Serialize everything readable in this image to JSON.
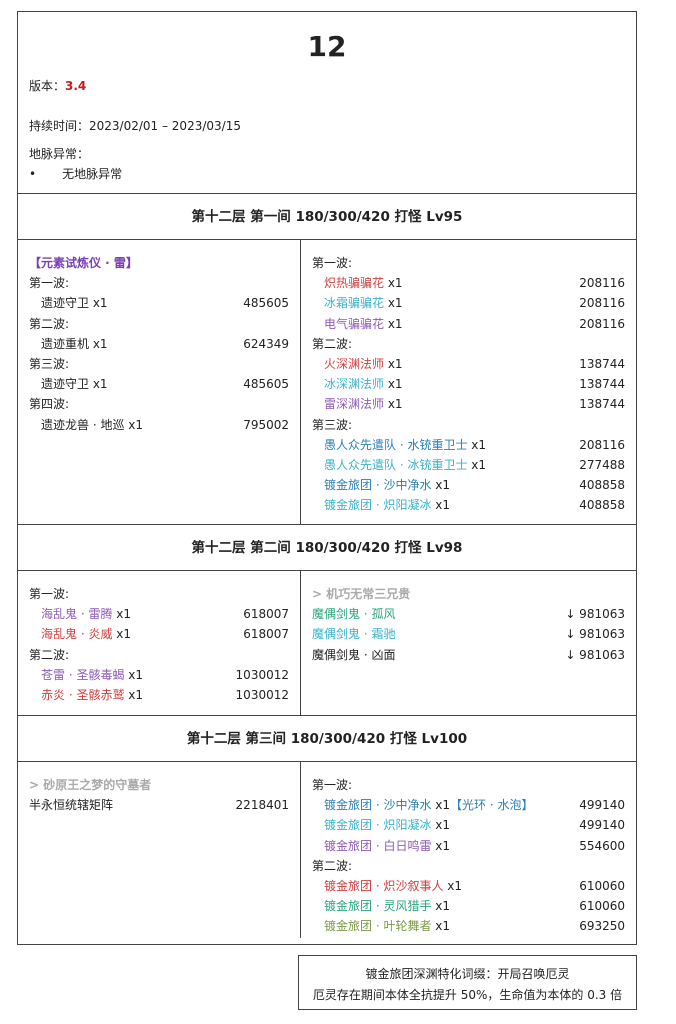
{
  "title": "12",
  "version_label": "版本：",
  "version": "3.4",
  "duration": "持续时间：2023/02/01 – 2023/03/15",
  "ley_label": "地脉异常：",
  "ley_item": "无地脉异常",
  "colors": {
    "pyro": "#d04040",
    "cryo": "#3ab3cc",
    "electro": "#8e5bb5",
    "hydro": "#2e7fb2",
    "anemo": "#2ba57a",
    "dendro": "#7b9a45",
    "accent": "#c0201a",
    "bracket": "#7a3fb5",
    "hint": "#aaaaaa"
  },
  "sections": [
    {
      "header": "第十二层 第一间 180/300/420 打怪 Lv95",
      "left": [
        {
          "type": "title",
          "parts": [
            {
              "t": "【元素试炼仪 · 雷】",
              "c": "bracket"
            }
          ]
        },
        {
          "type": "wave",
          "parts": [
            {
              "t": "第一波:"
            }
          ]
        },
        {
          "parts": [
            {
              "t": "遗迹守卫 x1"
            }
          ],
          "v": "485605"
        },
        {
          "type": "wave",
          "parts": [
            {
              "t": "第二波:"
            }
          ]
        },
        {
          "parts": [
            {
              "t": "遗迹重机 x1"
            }
          ],
          "v": "624349"
        },
        {
          "type": "wave",
          "parts": [
            {
              "t": "第三波:"
            }
          ]
        },
        {
          "parts": [
            {
              "t": "遗迹守卫 x1"
            }
          ],
          "v": "485605"
        },
        {
          "type": "wave",
          "parts": [
            {
              "t": "第四波:"
            }
          ]
        },
        {
          "parts": [
            {
              "t": "遗迹龙兽 · 地巡 x1"
            }
          ],
          "v": "795002"
        }
      ],
      "right": [
        {
          "type": "wave",
          "parts": [
            {
              "t": "第一波:"
            }
          ]
        },
        {
          "parts": [
            {
              "t": "炽热骗骗花",
              "c": "pyro"
            },
            {
              "t": " x1"
            }
          ],
          "v": "208116"
        },
        {
          "parts": [
            {
              "t": "冰霜骗骗花",
              "c": "cryo"
            },
            {
              "t": " x1"
            }
          ],
          "v": "208116"
        },
        {
          "parts": [
            {
              "t": "电气骗骗花",
              "c": "electro"
            },
            {
              "t": " x1"
            }
          ],
          "v": "208116"
        },
        {
          "type": "wave",
          "parts": [
            {
              "t": "第二波:"
            }
          ]
        },
        {
          "parts": [
            {
              "t": "火深渊法师",
              "c": "pyro"
            },
            {
              "t": " x1"
            }
          ],
          "v": "138744"
        },
        {
          "parts": [
            {
              "t": "冰深渊法师",
              "c": "cryo"
            },
            {
              "t": " x1"
            }
          ],
          "v": "138744"
        },
        {
          "parts": [
            {
              "t": "雷深渊法师",
              "c": "electro"
            },
            {
              "t": " x1"
            }
          ],
          "v": "138744"
        },
        {
          "type": "wave",
          "parts": [
            {
              "t": "第三波:"
            }
          ]
        },
        {
          "parts": [
            {
              "t": "愚人众先遣队 · 水铳重卫士",
              "c": "hydro"
            },
            {
              "t": " x1"
            }
          ],
          "v": "208116"
        },
        {
          "parts": [
            {
              "t": "愚人众先遣队 · 冰铳重卫士",
              "c": "cryo"
            },
            {
              "t": " x1"
            }
          ],
          "v": "277488"
        },
        {
          "parts": [
            {
              "t": "镀金旅团 · 沙中净水",
              "c": "hydro"
            },
            {
              "t": " x1"
            }
          ],
          "v": "408858"
        },
        {
          "parts": [
            {
              "t": "镀金旅团 · 炽阳凝冰",
              "c": "cryo"
            },
            {
              "t": " x1"
            }
          ],
          "v": "408858"
        }
      ]
    },
    {
      "header": "第十二层 第二间 180/300/420 打怪 Lv98",
      "left": [
        {
          "type": "wave",
          "parts": [
            {
              "t": "第一波:"
            }
          ]
        },
        {
          "parts": [
            {
              "t": "海乱鬼 · 雷腾",
              "c": "electro"
            },
            {
              "t": " x1"
            }
          ],
          "v": "618007"
        },
        {
          "parts": [
            {
              "t": "海乱鬼 · 炎威",
              "c": "pyro"
            },
            {
              "t": " x1"
            }
          ],
          "v": "618007"
        },
        {
          "type": "wave",
          "parts": [
            {
              "t": "第二波:"
            }
          ]
        },
        {
          "parts": [
            {
              "t": "苍雷 · 圣骸毒蝎",
              "c": "electro"
            },
            {
              "t": " x1"
            }
          ],
          "v": "1030012"
        },
        {
          "parts": [
            {
              "t": "赤炎 · 圣骸赤鹫",
              "c": "pyro"
            },
            {
              "t": " x1"
            }
          ],
          "v": "1030012"
        }
      ],
      "right": [
        {
          "type": "hint",
          "parts": [
            {
              "t": "> 机巧无常三兄贵",
              "c": "hint"
            }
          ]
        },
        {
          "type": "wave",
          "parts": [
            {
              "t": "魔偶剑鬼 · 孤风",
              "c": "anemo"
            }
          ],
          "v": "↓ 981063"
        },
        {
          "type": "wave",
          "parts": [
            {
              "t": "魔偶剑鬼 · 霜驰",
              "c": "cryo"
            }
          ],
          "v": "↓ 981063"
        },
        {
          "type": "wave",
          "parts": [
            {
              "t": "魔偶剑鬼 · 凶面"
            }
          ],
          "v": "↓ 981063"
        }
      ]
    },
    {
      "header": "第十二层 第三间 180/300/420 打怪 Lv100",
      "left": [
        {
          "type": "hint",
          "parts": [
            {
              "t": "> 砂原王之梦的守墓者",
              "c": "hint"
            }
          ]
        },
        {
          "type": "wave",
          "parts": [
            {
              "t": "半永恒统辖矩阵"
            }
          ],
          "v": "2218401"
        }
      ],
      "right": [
        {
          "type": "wave",
          "parts": [
            {
              "t": "第一波:"
            }
          ]
        },
        {
          "parts": [
            {
              "t": "镀金旅团 · 沙中净水",
              "c": "hydro"
            },
            {
              "t": " x1"
            },
            {
              "t": "【光环 · 水泡】",
              "c": "hydro"
            }
          ],
          "v": "499140"
        },
        {
          "parts": [
            {
              "t": "镀金旅团 · 炽阳凝冰",
              "c": "cryo"
            },
            {
              "t": " x1"
            }
          ],
          "v": "499140"
        },
        {
          "parts": [
            {
              "t": "镀金旅团 · 白日鸣雷",
              "c": "electro"
            },
            {
              "t": " x1"
            }
          ],
          "v": "554600"
        },
        {
          "type": "wave",
          "parts": [
            {
              "t": "第二波:"
            }
          ]
        },
        {
          "parts": [
            {
              "t": "镀金旅团 · 炽沙叙事人",
              "c": "pyro"
            },
            {
              "t": " x1"
            }
          ],
          "v": "610060"
        },
        {
          "parts": [
            {
              "t": "镀金旅团 · 灵风猎手",
              "c": "anemo"
            },
            {
              "t": " x1"
            }
          ],
          "v": "610060"
        },
        {
          "parts": [
            {
              "t": "镀金旅团 · 叶轮舞者",
              "c": "dendro"
            },
            {
              "t": " x1"
            }
          ],
          "v": "693250"
        }
      ]
    }
  ],
  "footer": {
    "line1": "镀金旅团深渊特化词缀：开局召唤厄灵",
    "line2": "厄灵存在期间本体全抗提升 50%，生命值为本体的 0.3 倍"
  }
}
